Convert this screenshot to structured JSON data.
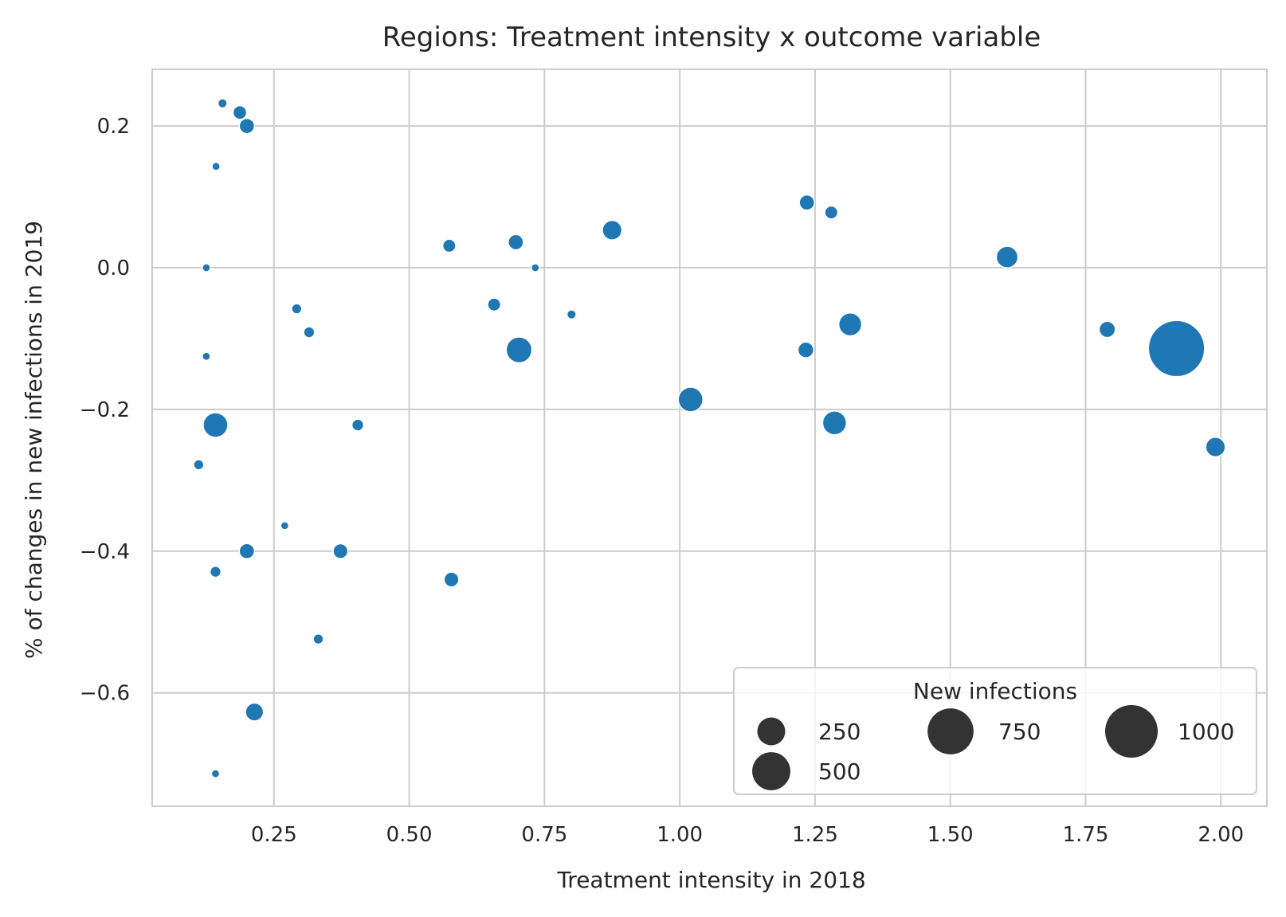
{
  "chart_data": {
    "type": "scatter",
    "title": "Regions: Treatment intensity x outcome variable",
    "xlabel": "Treatment intensity in 2018",
    "ylabel": "% of changes in new infections in 2019",
    "xlim": [
      0.025,
      2.085
    ],
    "ylim": [
      -0.76,
      0.28
    ],
    "xticks": [
      0.25,
      0.5,
      0.75,
      1.0,
      1.25,
      1.5,
      1.75,
      2.0
    ],
    "xtick_labels": [
      "0.25",
      "0.50",
      "0.75",
      "1.00",
      "1.25",
      "1.50",
      "1.75",
      "2.00"
    ],
    "yticks": [
      0.2,
      0.0,
      -0.2,
      -0.4,
      -0.6
    ],
    "ytick_labels": [
      "0.2",
      "0.0",
      "−0.2",
      "−0.4",
      "−0.6"
    ],
    "grid": true,
    "marker_color": "#1f77b4",
    "size_variable": "New infections",
    "points": [
      {
        "x": 0.155,
        "y": 0.232,
        "size": 15
      },
      {
        "x": 0.187,
        "y": 0.219,
        "size": 45
      },
      {
        "x": 0.2,
        "y": 0.2,
        "size": 60
      },
      {
        "x": 0.143,
        "y": 0.143,
        "size": 10
      },
      {
        "x": 0.125,
        "y": 0.0,
        "size": 10
      },
      {
        "x": 0.125,
        "y": -0.125,
        "size": 10
      },
      {
        "x": 0.142,
        "y": -0.222,
        "size": 190
      },
      {
        "x": 0.111,
        "y": -0.278,
        "size": 20
      },
      {
        "x": 0.2,
        "y": -0.4,
        "size": 60
      },
      {
        "x": 0.142,
        "y": -0.429,
        "size": 25
      },
      {
        "x": 0.214,
        "y": -0.627,
        "size": 90
      },
      {
        "x": 0.142,
        "y": -0.714,
        "size": 10
      },
      {
        "x": 0.292,
        "y": -0.058,
        "size": 20
      },
      {
        "x": 0.315,
        "y": -0.091,
        "size": 25
      },
      {
        "x": 0.27,
        "y": -0.364,
        "size": 10
      },
      {
        "x": 0.373,
        "y": -0.4,
        "size": 55
      },
      {
        "x": 0.405,
        "y": -0.222,
        "size": 30
      },
      {
        "x": 0.332,
        "y": -0.524,
        "size": 20
      },
      {
        "x": 0.574,
        "y": 0.031,
        "size": 40
      },
      {
        "x": 0.578,
        "y": -0.44,
        "size": 55
      },
      {
        "x": 0.657,
        "y": -0.052,
        "size": 40
      },
      {
        "x": 0.697,
        "y": 0.036,
        "size": 60
      },
      {
        "x": 0.703,
        "y": -0.116,
        "size": 210
      },
      {
        "x": 0.733,
        "y": 0.0,
        "size": 10
      },
      {
        "x": 0.8,
        "y": -0.066,
        "size": 15
      },
      {
        "x": 0.875,
        "y": 0.053,
        "size": 110
      },
      {
        "x": 1.02,
        "y": -0.186,
        "size": 190
      },
      {
        "x": 1.235,
        "y": 0.092,
        "size": 60
      },
      {
        "x": 1.233,
        "y": -0.116,
        "size": 65
      },
      {
        "x": 1.28,
        "y": 0.078,
        "size": 40
      },
      {
        "x": 1.286,
        "y": -0.219,
        "size": 175
      },
      {
        "x": 1.315,
        "y": -0.08,
        "size": 160
      },
      {
        "x": 1.605,
        "y": 0.015,
        "size": 140
      },
      {
        "x": 1.79,
        "y": -0.087,
        "size": 70
      },
      {
        "x": 1.918,
        "y": -0.114,
        "size": 1150
      },
      {
        "x": 1.99,
        "y": -0.253,
        "size": 110
      }
    ]
  },
  "legend": {
    "title": "New infections",
    "position": "lower-right",
    "items": [
      {
        "label": "250",
        "size": 250
      },
      {
        "label": "500",
        "size": 500
      },
      {
        "label": "750",
        "size": 750
      },
      {
        "label": "1000",
        "size": 1000
      }
    ],
    "marker_color": "#333333"
  }
}
